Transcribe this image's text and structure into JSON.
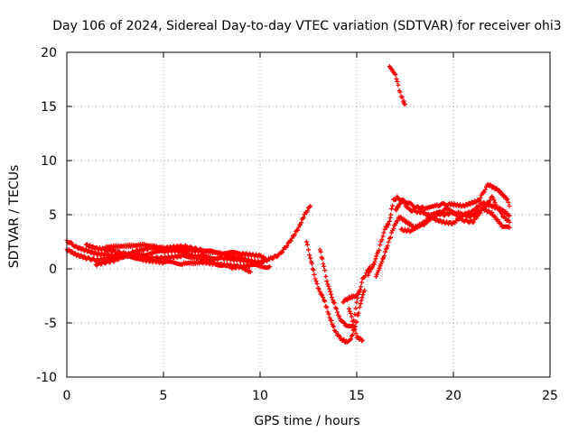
{
  "chart_data": {
    "type": "scatter",
    "title": "Day 106 of 2024, Sidereal Day-to-day VTEC variation (SDTVAR) for receiver ohi3",
    "xlabel": "GPS time / hours",
    "ylabel": "SDTVAR / TECUs",
    "xlim": [
      0,
      25
    ],
    "ylim": [
      -10,
      20
    ],
    "xticks": [
      "0",
      "5",
      "10",
      "15",
      "20",
      "25"
    ],
    "yticks": [
      "-10",
      "-5",
      "0",
      "5",
      "10",
      "15",
      "20"
    ],
    "grid": true,
    "marker": "+",
    "series": [
      {
        "name": "SDTVAR",
        "color": "#ff0000",
        "traces": [
          [
            [
              0,
              2.6
            ],
            [
              0.5,
              2.0
            ],
            [
              1,
              1.7
            ],
            [
              1.5,
              1.4
            ],
            [
              2,
              1.3
            ],
            [
              2.5,
              1.2
            ],
            [
              3,
              1.1
            ],
            [
              4,
              1.0
            ],
            [
              5,
              1.0
            ],
            [
              6,
              1.2
            ],
            [
              7,
              1.1
            ],
            [
              8,
              1.0
            ],
            [
              9,
              0.8
            ],
            [
              10,
              0.6
            ],
            [
              10.5,
              0.9
            ],
            [
              11,
              1.3
            ],
            [
              11.5,
              2.4
            ],
            [
              12,
              3.8
            ],
            [
              12.3,
              5.0
            ],
            [
              12.6,
              5.8
            ]
          ],
          [
            [
              0,
              1.8
            ],
            [
              0.5,
              1.3
            ],
            [
              1,
              1.0
            ],
            [
              1.5,
              0.8
            ],
            [
              2,
              0.9
            ],
            [
              2.5,
              1.1
            ],
            [
              3,
              1.2
            ],
            [
              4,
              1.3
            ],
            [
              5,
              1.6
            ],
            [
              6,
              1.8
            ],
            [
              7,
              1.6
            ],
            [
              8,
              1.5
            ],
            [
              9,
              1.4
            ],
            [
              10,
              1.2
            ],
            [
              10.3,
              0.9
            ]
          ],
          [
            [
              1,
              2.2
            ],
            [
              1.5,
              1.9
            ],
            [
              2,
              1.8
            ],
            [
              2.5,
              1.6
            ],
            [
              3,
              1.4
            ],
            [
              4,
              0.8
            ],
            [
              5,
              0.6
            ],
            [
              6,
              0.5
            ],
            [
              7,
              0.6
            ],
            [
              8,
              0.4
            ],
            [
              9,
              0.2
            ],
            [
              9.5,
              -0.3
            ]
          ],
          [
            [
              1.5,
              0.4
            ],
            [
              2.5,
              0.8
            ],
            [
              3.5,
              1.6
            ],
            [
              4.5,
              2.0
            ],
            [
              5.5,
              1.8
            ],
            [
              6.5,
              1.2
            ],
            [
              7.5,
              0.6
            ],
            [
              8.5,
              0.1
            ],
            [
              9.5,
              0.3
            ],
            [
              10.5,
              0.2
            ]
          ],
          [
            [
              2,
              2.0
            ],
            [
              3,
              2.1
            ],
            [
              4,
              2.2
            ],
            [
              5,
              1.9
            ],
            [
              6,
              2.1
            ],
            [
              7,
              1.7
            ],
            [
              8,
              1.4
            ],
            [
              9,
              1.0
            ],
            [
              10,
              0.4
            ]
          ],
          [
            [
              12.4,
              2.5
            ],
            [
              12.6,
              1.0
            ],
            [
              12.8,
              -0.5
            ],
            [
              13,
              -1.8
            ],
            [
              13.3,
              -2.8
            ],
            [
              13.6,
              -4.5
            ],
            [
              13.9,
              -5.8
            ],
            [
              14.2,
              -6.5
            ],
            [
              14.5,
              -6.8
            ],
            [
              14.7,
              -6.5
            ],
            [
              15,
              -4.8
            ],
            [
              15.2,
              -3.2
            ],
            [
              15.4,
              -2.0
            ]
          ],
          [
            [
              13.1,
              1.8
            ],
            [
              13.3,
              0.2
            ],
            [
              13.5,
              -1.5
            ],
            [
              13.8,
              -3.0
            ],
            [
              14.1,
              -4.5
            ],
            [
              14.4,
              -5.2
            ],
            [
              14.8,
              -5.2
            ],
            [
              15,
              -3.0
            ],
            [
              15.3,
              -1.0
            ],
            [
              15.7,
              0.2
            ]
          ],
          [
            [
              14.3,
              -3.0
            ],
            [
              14.6,
              -2.7
            ],
            [
              14.9,
              -2.5
            ],
            [
              15.1,
              -2.2
            ]
          ],
          [
            [
              14.6,
              -3.6
            ],
            [
              15,
              -6.3
            ],
            [
              15.3,
              -6.6
            ]
          ],
          [
            [
              15.6,
              -0.5
            ],
            [
              15.9,
              0.5
            ],
            [
              16.1,
              1.5
            ],
            [
              16.3,
              2.8
            ],
            [
              16.5,
              3.8
            ],
            [
              16.7,
              4.3
            ],
            [
              16.8,
              5.5
            ],
            [
              16.9,
              6.3
            ],
            [
              17.1,
              6.6
            ],
            [
              17.4,
              6.2
            ],
            [
              17.7,
              5.5
            ],
            [
              18,
              5.3
            ],
            [
              18.5,
              5.2
            ],
            [
              19,
              4.6
            ],
            [
              19.5,
              4.3
            ],
            [
              20,
              4.2
            ],
            [
              20.5,
              5.0
            ],
            [
              21,
              5.3
            ],
            [
              21.5,
              6.1
            ],
            [
              22,
              5.8
            ],
            [
              22.5,
              5.5
            ],
            [
              22.9,
              4.9
            ]
          ],
          [
            [
              16,
              -0.8
            ],
            [
              16.3,
              0.6
            ],
            [
              16.6,
              2.2
            ],
            [
              16.9,
              3.8
            ],
            [
              17.2,
              4.8
            ],
            [
              17.6,
              4.3
            ],
            [
              18,
              3.8
            ],
            [
              18.5,
              4.3
            ],
            [
              19,
              5.2
            ],
            [
              19.5,
              5.0
            ],
            [
              20,
              5.2
            ],
            [
              20.5,
              4.5
            ],
            [
              21,
              4.3
            ],
            [
              21.5,
              5.5
            ],
            [
              22,
              6.6
            ],
            [
              22.5,
              5.0
            ],
            [
              22.9,
              4.3
            ]
          ],
          [
            [
              17,
              5.4
            ],
            [
              17.4,
              6.4
            ],
            [
              18,
              5.7
            ],
            [
              18.6,
              5.6
            ],
            [
              19.2,
              5.9
            ],
            [
              19.8,
              6.0
            ],
            [
              20.5,
              5.8
            ],
            [
              21.3,
              6.3
            ],
            [
              21.8,
              7.8
            ],
            [
              22.3,
              7.3
            ],
            [
              22.8,
              6.4
            ],
            [
              22.9,
              5.8
            ]
          ],
          [
            [
              17.3,
              3.6
            ],
            [
              17.8,
              3.5
            ],
            [
              18.4,
              4.0
            ],
            [
              19,
              4.9
            ],
            [
              19.6,
              5.5
            ],
            [
              20.2,
              5.2
            ],
            [
              20.9,
              4.8
            ],
            [
              21.5,
              5.6
            ],
            [
              22,
              5.1
            ],
            [
              22.5,
              4.0
            ],
            [
              22.9,
              3.8
            ]
          ],
          [
            [
              16.7,
              18.8
            ],
            [
              17,
              18.0
            ],
            [
              17.2,
              16.5
            ],
            [
              17.4,
              15.5
            ],
            [
              17.5,
              15.2
            ]
          ]
        ]
      }
    ]
  }
}
